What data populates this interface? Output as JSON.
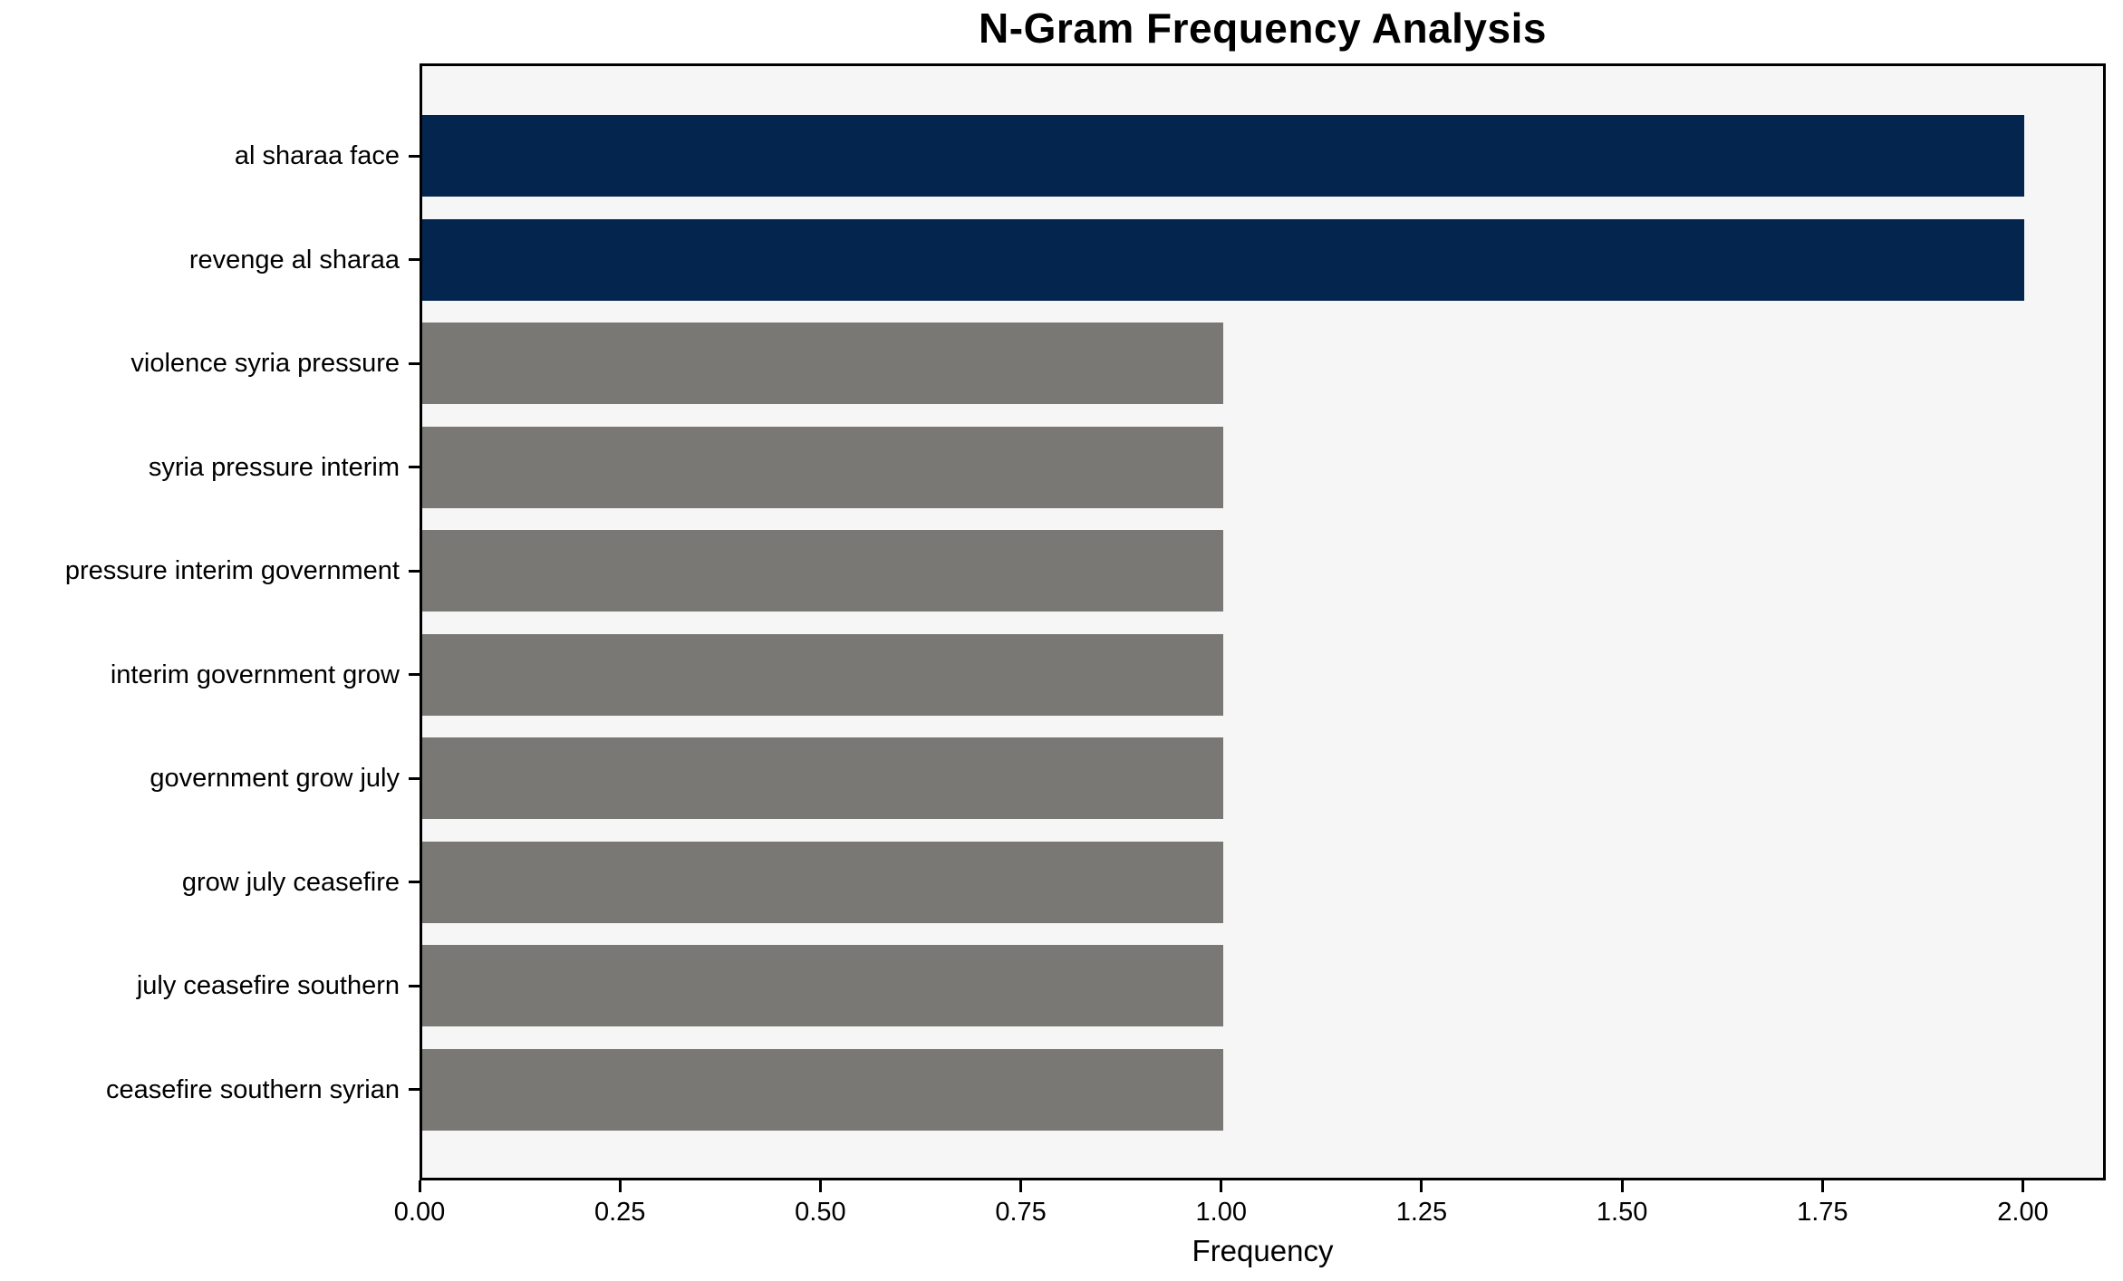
{
  "chart_data": {
    "type": "bar",
    "orientation": "horizontal",
    "title": "N-Gram Frequency Analysis",
    "xlabel": "Frequency",
    "ylabel": "",
    "categories": [
      "al sharaa face",
      "revenge al sharaa",
      "violence syria pressure",
      "syria pressure interim",
      "pressure interim government",
      "interim government grow",
      "government grow july",
      "grow july ceasefire",
      "july ceasefire southern",
      "ceasefire southern syrian"
    ],
    "values": [
      2,
      2,
      1,
      1,
      1,
      1,
      1,
      1,
      1,
      1
    ],
    "xlim": [
      0,
      2.1
    ],
    "xticks": [
      {
        "value": 0.0,
        "label": "0.00"
      },
      {
        "value": 0.25,
        "label": "0.25"
      },
      {
        "value": 0.5,
        "label": "0.50"
      },
      {
        "value": 0.75,
        "label": "0.75"
      },
      {
        "value": 1.0,
        "label": "1.00"
      },
      {
        "value": 1.25,
        "label": "1.25"
      },
      {
        "value": 1.5,
        "label": "1.50"
      },
      {
        "value": 1.75,
        "label": "1.75"
      },
      {
        "value": 2.0,
        "label": "2.00"
      }
    ],
    "grid": false,
    "legend": null,
    "highlight_count": 2,
    "colors": {
      "highlight_bar": "#03254e",
      "default_bar": "#7a7874",
      "plot_background": "#f7f6f6",
      "spine": "#000000",
      "text": "#000000"
    }
  }
}
